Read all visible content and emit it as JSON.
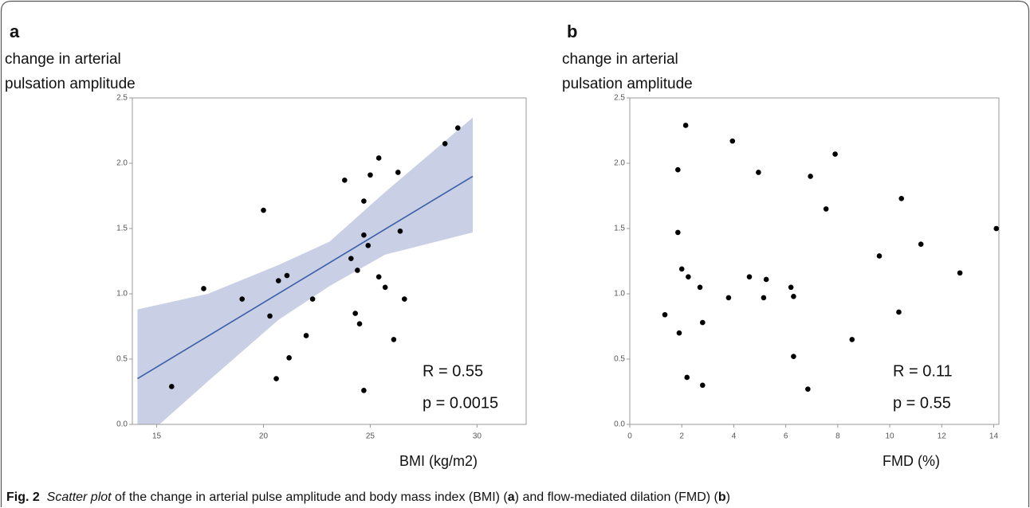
{
  "chart_data": [
    {
      "type": "scatter",
      "panel_label": "a",
      "ylabel_lines": [
        "change in arterial",
        "pulsation amplitude"
      ],
      "xlabel": "BMI (kg/m2)",
      "xlim": [
        13.86,
        32.3
      ],
      "ylim": [
        0,
        2.5
      ],
      "xticks": [
        15,
        20,
        25,
        30
      ],
      "yticks": [
        {
          "value": 0,
          "label": "0.0"
        },
        {
          "value": 0.5,
          "label": "0.5"
        },
        {
          "value": 1,
          "label": "1.0"
        },
        {
          "value": 1.5,
          "label": "1.5"
        },
        {
          "value": 2,
          "label": "2.0"
        },
        {
          "value": 2.5,
          "label": "2.5"
        }
      ],
      "color": "#000000",
      "x": [
        15.7,
        17.2,
        19.0,
        20.0,
        20.3,
        20.6,
        20.7,
        21.1,
        21.2,
        22.0,
        22.3,
        23.8,
        24.1,
        24.3,
        24.4,
        24.5,
        24.7,
        24.7,
        24.7,
        24.9,
        25.0,
        25.4,
        25.4,
        25.7,
        26.1,
        26.3,
        26.4,
        26.6,
        28.5,
        29.1
      ],
      "y": [
        0.29,
        1.04,
        0.96,
        1.64,
        0.83,
        0.35,
        1.1,
        1.14,
        0.51,
        0.68,
        0.96,
        1.87,
        1.27,
        0.85,
        1.18,
        0.77,
        1.71,
        0.26,
        1.45,
        1.37,
        1.91,
        1.13,
        2.04,
        1.05,
        0.65,
        1.93,
        1.48,
        0.96,
        2.15,
        2.27
      ],
      "fit_line": {
        "color": "#3a5fa8",
        "x": [
          14.1,
          29.8
        ],
        "y": [
          0.35,
          1.9
        ]
      },
      "band": {
        "color": "#c9cfe4",
        "x": [
          14.1,
          17.4,
          20.7,
          23.1,
          25.7,
          29.8
        ],
        "upper": [
          0.88,
          1.0,
          1.22,
          1.4,
          1.78,
          2.35
        ],
        "lower": [
          -0.15,
          0.33,
          0.8,
          1.06,
          1.3,
          1.47
        ]
      },
      "annotations": [
        "R = 0.55",
        "p = 0.0015"
      ]
    },
    {
      "type": "scatter",
      "panel_label": "b",
      "ylabel_lines": [
        "change in arterial",
        "pulsation amplitude"
      ],
      "xlabel": "FMD (%)",
      "xlim": [
        0,
        14.2
      ],
      "ylim": [
        0,
        2.5
      ],
      "xticks": [
        0,
        2,
        4,
        6,
        8,
        10,
        12,
        14
      ],
      "yticks": [
        {
          "value": 0,
          "label": "0.0"
        },
        {
          "value": 0.5,
          "label": "0.5"
        },
        {
          "value": 1,
          "label": "1.0"
        },
        {
          "value": 1.5,
          "label": "1.5"
        },
        {
          "value": 2,
          "label": "2.0"
        },
        {
          "value": 2.5,
          "label": "2.5"
        }
      ],
      "color": "#000000",
      "x": [
        1.35,
        1.9,
        1.85,
        1.85,
        2.0,
        2.15,
        2.2,
        2.25,
        2.7,
        2.8,
        2.8,
        3.8,
        3.95,
        4.6,
        4.95,
        5.15,
        5.25,
        6.2,
        6.3,
        6.3,
        6.85,
        6.95,
        7.55,
        7.9,
        8.55,
        9.6,
        10.35,
        10.45,
        11.2,
        12.7,
        14.1
      ],
      "y": [
        0.84,
        0.7,
        1.47,
        1.95,
        1.19,
        2.29,
        0.36,
        1.13,
        1.05,
        0.78,
        0.3,
        0.97,
        2.17,
        1.13,
        1.93,
        0.97,
        1.11,
        1.05,
        0.98,
        0.52,
        0.27,
        1.9,
        1.65,
        2.07,
        0.65,
        1.29,
        0.86,
        1.73,
        1.38,
        1.16,
        1.5
      ],
      "annotations": [
        "R = 0.11",
        "p = 0.55"
      ]
    }
  ],
  "caption": {
    "parts": [
      "Fig. 2",
      "  Scatter plot",
      " of the change in arterial pulse amplitude and body mass index (BMI) (",
      "a",
      ") and flow-mediated dilation (FMD) (",
      "b",
      ")"
    ]
  }
}
